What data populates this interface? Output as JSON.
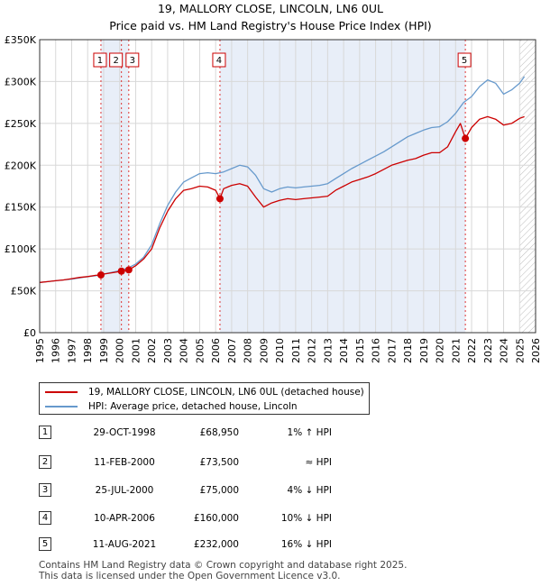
{
  "chart_data": {
    "type": "line",
    "title": "19, MALLORY CLOSE, LINCOLN, LN6 0UL",
    "subtitle": "Price paid vs. HM Land Registry's House Price Index (HPI)",
    "xlabel": "",
    "ylabel": "",
    "xlim": [
      1995,
      2026
    ],
    "ylim": [
      0,
      350000
    ],
    "grid": true,
    "x_ticks": [
      "1995",
      "1996",
      "1997",
      "1998",
      "1999",
      "2000",
      "2001",
      "2002",
      "2003",
      "2004",
      "2005",
      "2006",
      "2007",
      "2008",
      "2009",
      "2010",
      "2011",
      "2012",
      "2013",
      "2014",
      "2015",
      "2016",
      "2017",
      "2018",
      "2019",
      "2020",
      "2021",
      "2022",
      "2023",
      "2024",
      "2025",
      "2026"
    ],
    "y_ticks": [
      {
        "value": 0,
        "label": "£0"
      },
      {
        "value": 50000,
        "label": "£50K"
      },
      {
        "value": 100000,
        "label": "£100K"
      },
      {
        "value": 150000,
        "label": "£150K"
      },
      {
        "value": 200000,
        "label": "£200K"
      },
      {
        "value": 250000,
        "label": "£250K"
      },
      {
        "value": 300000,
        "label": "£300K"
      },
      {
        "value": 350000,
        "label": "£350K"
      }
    ],
    "shaded_ranges": [
      [
        1998.83,
        2000.57
      ],
      [
        2006.27,
        2021.61
      ]
    ],
    "hatch_from": 2025.0,
    "series": [
      {
        "name": "19, MALLORY CLOSE, LINCOLN, LN6 0UL (detached house)",
        "color": "#cc0000",
        "x": [
          1995,
          1995.5,
          1996,
          1996.5,
          1997,
          1997.5,
          1998,
          1998.5,
          1998.83,
          1999,
          1999.5,
          2000,
          2000.11,
          2000.57,
          2001,
          2001.5,
          2002,
          2002.5,
          2003,
          2003.5,
          2004,
          2004.5,
          2005,
          2005.5,
          2006,
          2006.27,
          2006.5,
          2007,
          2007.5,
          2008,
          2008.5,
          2009,
          2009.5,
          2010,
          2010.5,
          2011,
          2011.5,
          2012,
          2012.5,
          2013,
          2013.5,
          2014,
          2014.5,
          2015,
          2015.5,
          2016,
          2016.5,
          2017,
          2017.5,
          2018,
          2018.5,
          2019,
          2019.5,
          2020,
          2020.5,
          2021,
          2021.3,
          2021.61,
          2022,
          2022.5,
          2023,
          2023.5,
          2024,
          2024.5,
          2025,
          2025.3
        ],
        "values": [
          60000,
          61000,
          62000,
          63000,
          64500,
          66000,
          67000,
          68500,
          68950,
          70000,
          71500,
          73000,
          73500,
          75000,
          80000,
          88000,
          100000,
          125000,
          145000,
          160000,
          170000,
          172000,
          175000,
          174000,
          170000,
          160000,
          172000,
          176000,
          178000,
          175000,
          162000,
          150000,
          155000,
          158000,
          160000,
          159000,
          160000,
          161000,
          162000,
          163000,
          170000,
          175000,
          180000,
          183000,
          186000,
          190000,
          195000,
          200000,
          203000,
          206000,
          208000,
          212000,
          215000,
          215000,
          222000,
          240000,
          250000,
          232000,
          245000,
          255000,
          258000,
          255000,
          248000,
          250000,
          256000,
          258000
        ]
      },
      {
        "name": "HPI: Average price, detached house, Lincoln",
        "color": "#6699cc",
        "x": [
          1995,
          1995.5,
          1996,
          1996.5,
          1997,
          1997.5,
          1998,
          1998.5,
          1999,
          1999.5,
          2000,
          2000.5,
          2001,
          2001.5,
          2002,
          2002.5,
          2003,
          2003.5,
          2004,
          2004.5,
          2005,
          2005.5,
          2006,
          2006.5,
          2007,
          2007.5,
          2008,
          2008.5,
          2009,
          2009.5,
          2010,
          2010.5,
          2011,
          2011.5,
          2012,
          2012.5,
          2013,
          2013.5,
          2014,
          2014.5,
          2015,
          2015.5,
          2016,
          2016.5,
          2017,
          2017.5,
          2018,
          2018.5,
          2019,
          2019.5,
          2020,
          2020.5,
          2021,
          2021.5,
          2022,
          2022.5,
          2023,
          2023.5,
          2024,
          2024.5,
          2025,
          2025.3
        ],
        "values": [
          60000,
          61000,
          62000,
          63000,
          64000,
          65500,
          67000,
          68000,
          70000,
          72000,
          74000,
          77000,
          82000,
          90000,
          105000,
          130000,
          152000,
          168000,
          180000,
          185000,
          190000,
          191000,
          190000,
          192000,
          196000,
          200000,
          198000,
          188000,
          172000,
          168000,
          172000,
          174000,
          173000,
          174000,
          175000,
          176000,
          178000,
          184000,
          190000,
          196000,
          201000,
          206000,
          211000,
          216000,
          222000,
          228000,
          234000,
          238000,
          242000,
          245000,
          246000,
          252000,
          262000,
          275000,
          282000,
          294000,
          302000,
          298000,
          285000,
          290000,
          298000,
          306000
        ]
      }
    ],
    "sales": [
      {
        "n": "1",
        "x": 1998.83,
        "value": 68950
      },
      {
        "n": "2",
        "x": 2000.11,
        "value": 73500
      },
      {
        "n": "3",
        "x": 2000.57,
        "value": 75000
      },
      {
        "n": "4",
        "x": 2006.27,
        "value": 160000
      },
      {
        "n": "5",
        "x": 2021.61,
        "value": 232000
      }
    ]
  },
  "legend": {
    "property_label": "19, MALLORY CLOSE, LINCOLN, LN6 0UL (detached house)",
    "hpi_label": "HPI: Average price, detached house, Lincoln"
  },
  "sales_table": [
    {
      "n": "1",
      "date": "29-OCT-1998",
      "price": "£68,950",
      "hpi": "1% ↑ HPI"
    },
    {
      "n": "2",
      "date": "11-FEB-2000",
      "price": "£73,500",
      "hpi": "≈ HPI"
    },
    {
      "n": "3",
      "date": "25-JUL-2000",
      "price": "£75,000",
      "hpi": "4% ↓ HPI"
    },
    {
      "n": "4",
      "date": "10-APR-2006",
      "price": "£160,000",
      "hpi": "10% ↓ HPI"
    },
    {
      "n": "5",
      "date": "11-AUG-2021",
      "price": "£232,000",
      "hpi": "16% ↓ HPI"
    }
  ],
  "footer": {
    "line1": "Contains HM Land Registry data © Crown copyright and database right 2025.",
    "line2": "This data is licensed under the Open Government Licence v3.0."
  }
}
